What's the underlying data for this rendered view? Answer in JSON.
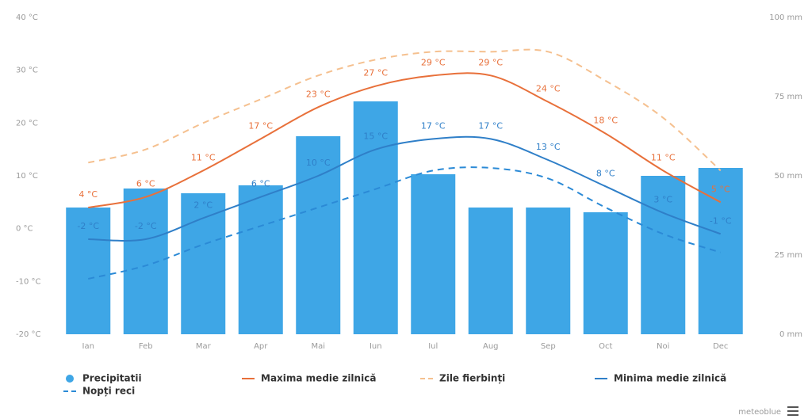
{
  "chart_data": {
    "type": "bar-line",
    "categories": [
      "Ian",
      "Feb",
      "Mar",
      "Apr",
      "Mai",
      "Iun",
      "Iul",
      "Aug",
      "Sep",
      "Oct",
      "Noi",
      "Dec"
    ],
    "series": [
      {
        "name": "Precipitatii",
        "type": "bar",
        "axis": "y2",
        "color": "#3ea6e6",
        "values": [
          40,
          46,
          44.5,
          47,
          62.5,
          73.5,
          50.5,
          40,
          40,
          38.5,
          50,
          52.5
        ]
      },
      {
        "name": "Maxima medie zilnică",
        "type": "line",
        "color": "#e8703a",
        "values": [
          4,
          6,
          11,
          17,
          23,
          27,
          29,
          29,
          24,
          18,
          11,
          5
        ],
        "value_labels": [
          "4 °C",
          "6 °C",
          "11 °C",
          "17 °C",
          "23 °C",
          "27 °C",
          "29 °C",
          "29 °C",
          "24 °C",
          "18 °C",
          "11 °C",
          "5 °C"
        ]
      },
      {
        "name": "Zile fierbinți",
        "type": "line",
        "dashed": true,
        "color": "#f5c08f",
        "values": [
          12.5,
          15,
          20,
          24.5,
          29,
          32,
          33.5,
          33.5,
          33.5,
          28,
          21,
          11
        ]
      },
      {
        "name": "Minima medie zilnică",
        "type": "line",
        "color": "#2f7fc8",
        "values": [
          -2,
          -2,
          2,
          6,
          10,
          15,
          17,
          17,
          13,
          8,
          3,
          -1
        ],
        "value_labels": [
          "-2 °C",
          "-2 °C",
          "2 °C",
          "6 °C",
          "10 °C",
          "15 °C",
          "17 °C",
          "17 °C",
          "13 °C",
          "8 °C",
          "3 °C",
          "-1 °C"
        ]
      },
      {
        "name": "Nopți reci",
        "type": "line",
        "dashed": true,
        "color": "#2b8ad6",
        "values": [
          -9.5,
          -7,
          -3,
          0.5,
          4,
          7.5,
          11,
          11.5,
          9.5,
          4,
          -1,
          -4.5
        ]
      }
    ],
    "ylim": [
      -20,
      40
    ],
    "yticks": [
      {
        "value": -20,
        "label": "-20 °C"
      },
      {
        "value": -10,
        "label": "-10 °C"
      },
      {
        "value": 0,
        "label": "0 °C"
      },
      {
        "value": 10,
        "label": "10 °C"
      },
      {
        "value": 20,
        "label": "20 °C"
      },
      {
        "value": 30,
        "label": "30 °C"
      },
      {
        "value": 40,
        "label": "40 °C"
      }
    ],
    "y2lim": [
      0,
      100
    ],
    "y2ticks": [
      {
        "value": 0,
        "label": "0 mm"
      },
      {
        "value": 25,
        "label": "25 mm"
      },
      {
        "value": 50,
        "label": "50 mm"
      },
      {
        "value": 75,
        "label": "75 mm"
      },
      {
        "value": 100,
        "label": "100 mm"
      }
    ],
    "credit": "meteoblue"
  }
}
